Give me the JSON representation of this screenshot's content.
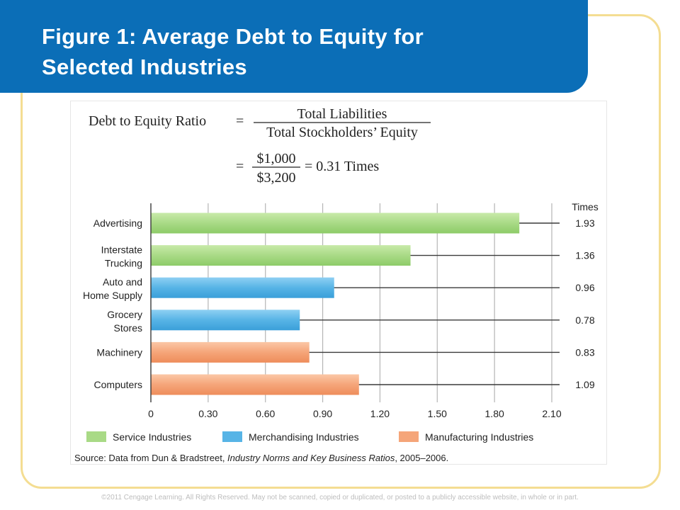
{
  "slide": {
    "title_line1": "Figure 1: Average Debt to Equity for",
    "title_line2": "Selected Industries",
    "footer": "©2011 Cengage Learning. All Rights Reserved. May not be scanned, copied or duplicated, or posted to a publicly accessible website, in whole or in part."
  },
  "formula": {
    "lhs": "Debt to Equity Ratio",
    "equals": "=",
    "numerator": "Total Liabilities",
    "denominator": "Total Stockholders’ Equity",
    "numerator_value": "$1,000",
    "denominator_value": "$3,200",
    "result": "= 0.31 Times"
  },
  "chart_data": {
    "type": "bar",
    "orientation": "horizontal",
    "categories": [
      "Advertising",
      "Interstate Trucking",
      "Auto and Home Supply",
      "Grocery Stores",
      "Machinery",
      "Computers"
    ],
    "category_lines": [
      [
        "Advertising"
      ],
      [
        "Interstate",
        "Trucking"
      ],
      [
        "Auto and",
        "Home Supply"
      ],
      [
        "Grocery",
        "Stores"
      ],
      [
        "Machinery"
      ],
      [
        "Computers"
      ]
    ],
    "values": [
      1.93,
      1.36,
      0.96,
      0.78,
      0.83,
      1.09
    ],
    "value_labels": [
      "1.93",
      "1.36",
      "0.96",
      "0.78",
      "0.83",
      "1.09"
    ],
    "groups": [
      "Service Industries",
      "Service Industries",
      "Merchandising Industries",
      "Merchandising Industries",
      "Manufacturing Industries",
      "Manufacturing Industries"
    ],
    "values_header": "Times",
    "xlim": [
      0,
      2.1
    ],
    "xticks": [
      0,
      0.3,
      0.6,
      0.9,
      1.2,
      1.5,
      1.8,
      2.1
    ],
    "xtick_labels": [
      "0",
      "0.30",
      "0.60",
      "0.90",
      "1.20",
      "1.50",
      "1.80",
      "2.10"
    ],
    "grid": true,
    "legend": {
      "placement": "bottom",
      "items": [
        {
          "name": "Service Industries",
          "color": "#a9da86"
        },
        {
          "name": "Merchandising Industries",
          "color": "#57b4e6"
        },
        {
          "name": "Manufacturing Industries",
          "color": "#f5a579"
        }
      ]
    },
    "source_prefix": "Source: Data from Dun & Bradstreet, ",
    "source_italic": "Industry Norms and Key Business Ratios",
    "source_suffix": ", 2005–2006."
  }
}
